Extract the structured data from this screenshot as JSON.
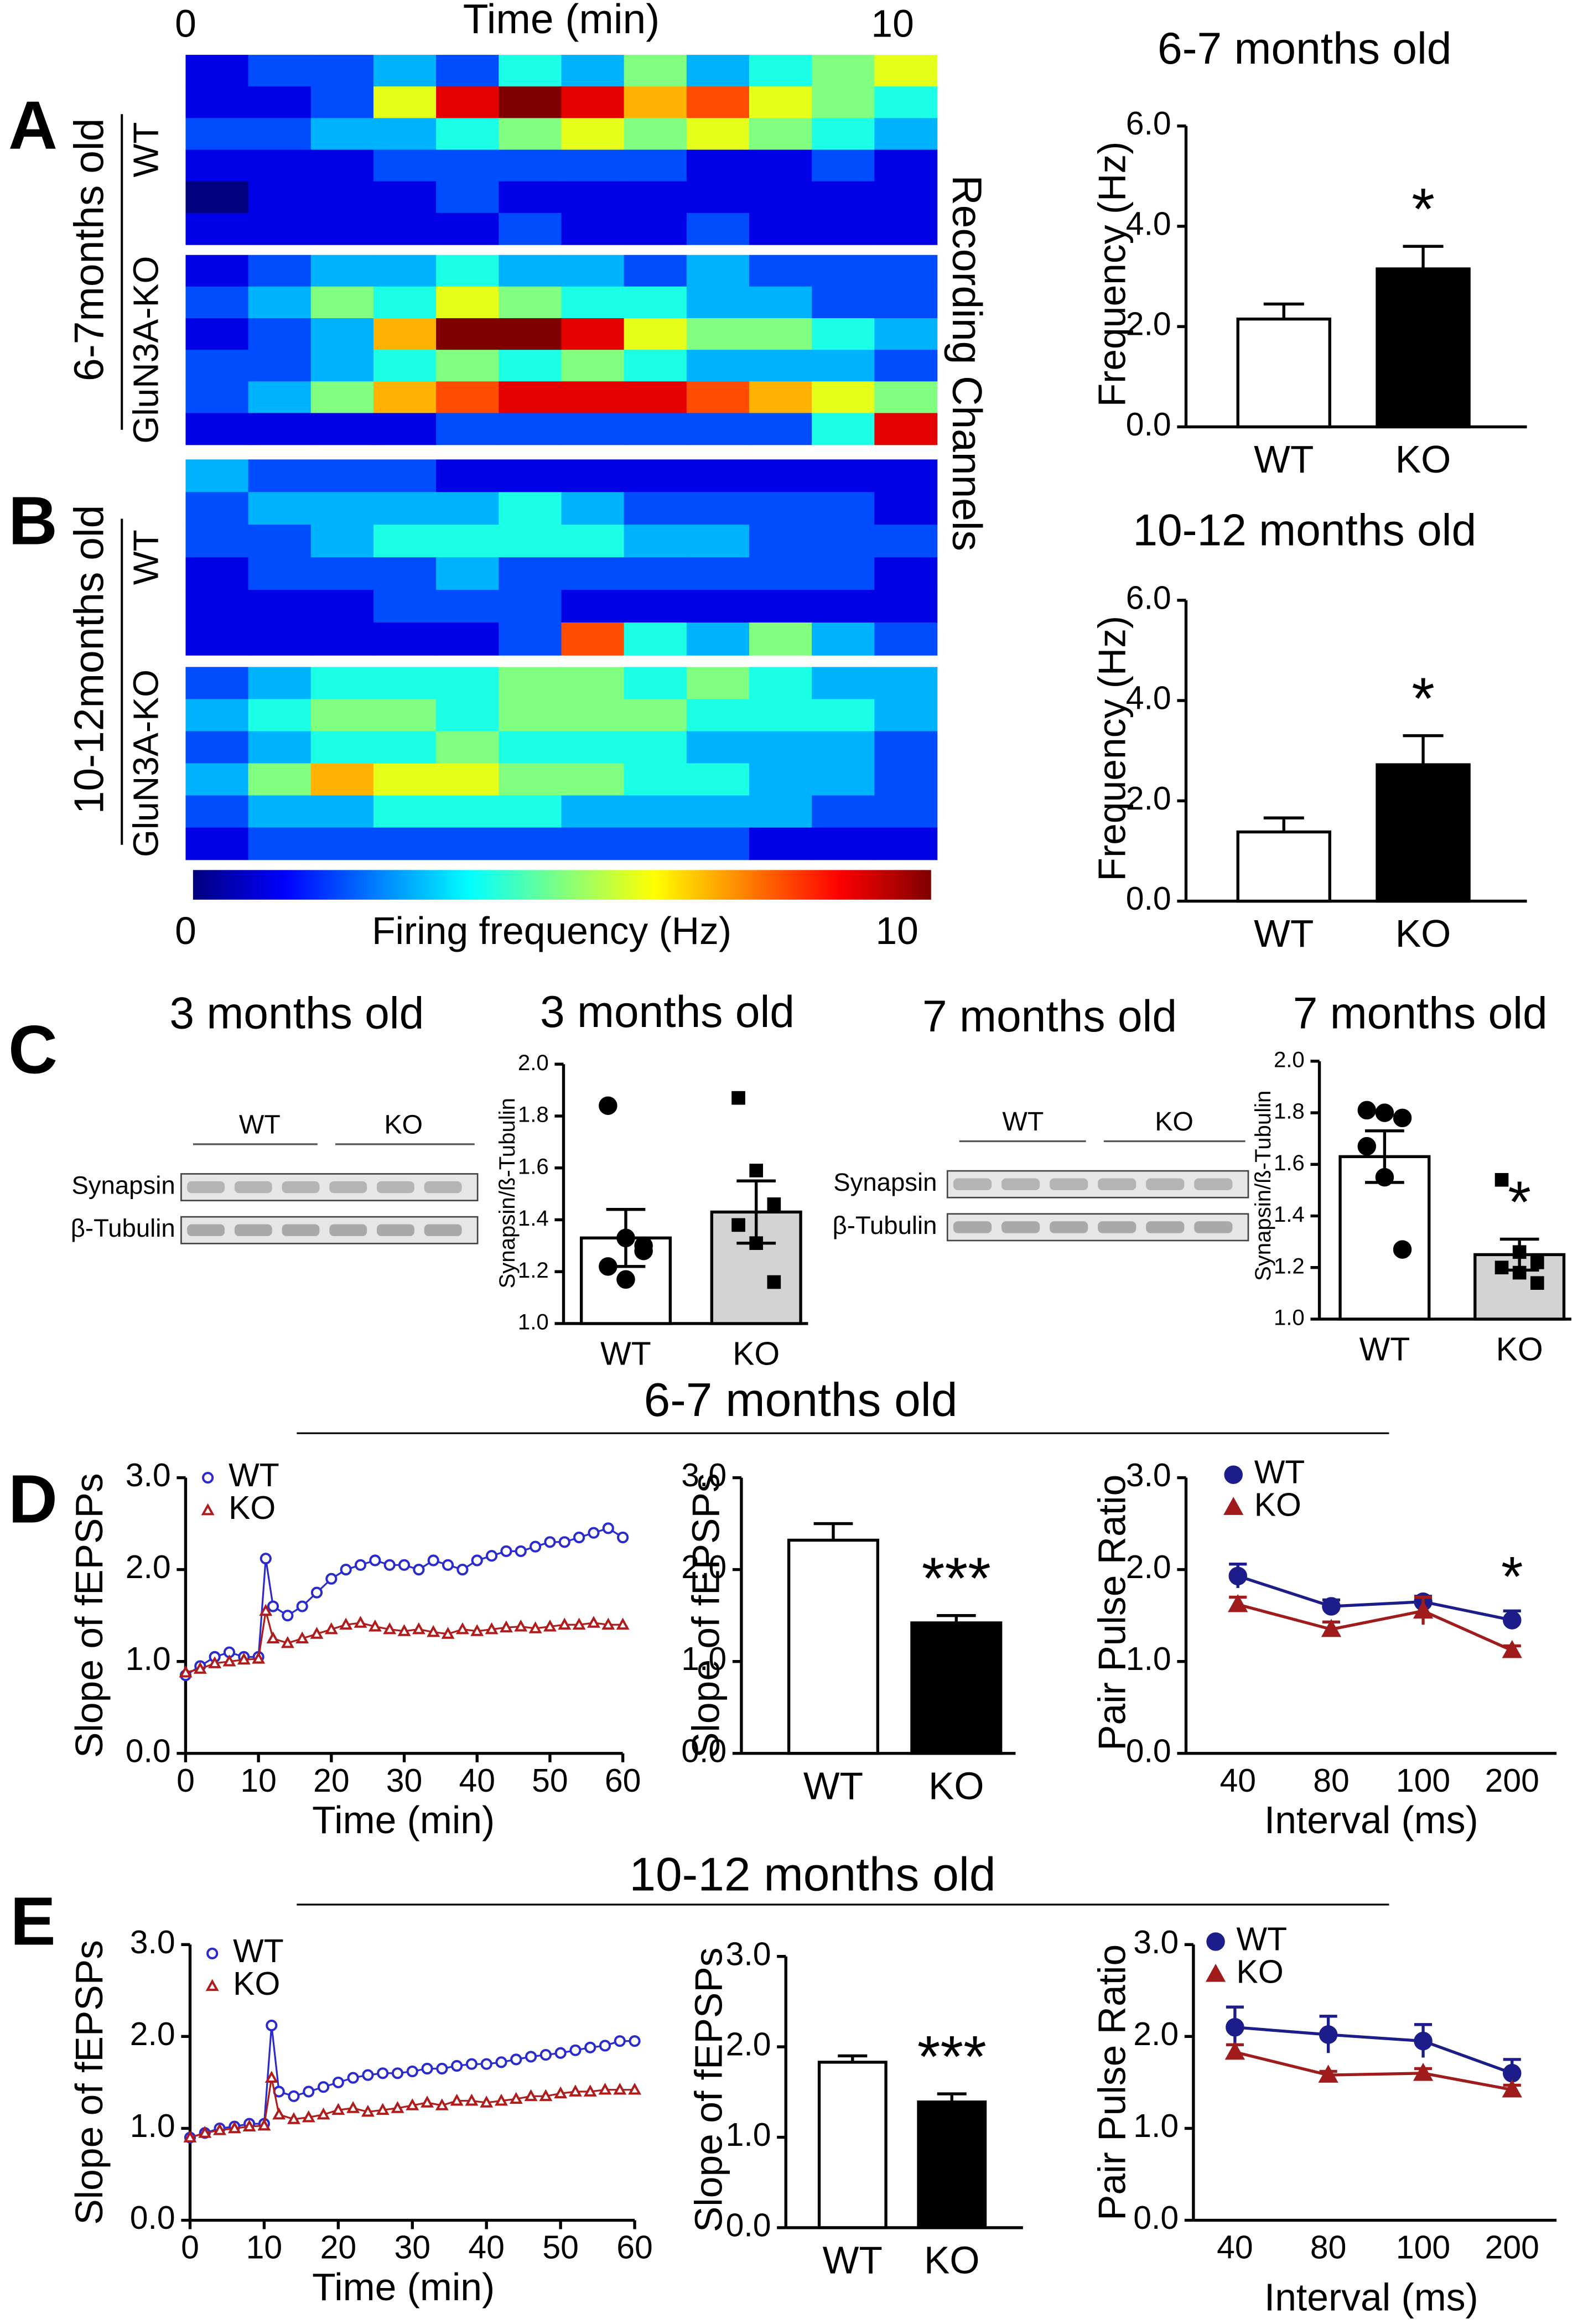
{
  "chart_data": [
    {
      "type": "heatmap",
      "panel": "A",
      "title": "Time (min)",
      "xlim": [
        0,
        10
      ],
      "xticks": [
        0,
        10
      ],
      "ylabel": "6-7months old",
      "side_label": "Recording Channels",
      "groups": [
        {
          "name": "WT",
          "values": [
            [
              1,
              2,
              2,
              3,
              2,
              4,
              3,
              5,
              3,
              4,
              5,
              6
            ],
            [
              1,
              1,
              2,
              6,
              9,
              10,
              9,
              7,
              8,
              6,
              5,
              4
            ],
            [
              2,
              2,
              3,
              3,
              4,
              5,
              6,
              5,
              6,
              5,
              4,
              3
            ],
            [
              1,
              1,
              1,
              2,
              2,
              2,
              2,
              2,
              1,
              1,
              2,
              1
            ],
            [
              0,
              1,
              1,
              1,
              2,
              1,
              1,
              1,
              1,
              1,
              1,
              1
            ],
            [
              1,
              1,
              1,
              1,
              1,
              2,
              1,
              1,
              2,
              1,
              1,
              1
            ]
          ]
        },
        {
          "name": "GluN3A-KO",
          "values": [
            [
              1,
              2,
              3,
              3,
              4,
              3,
              3,
              2,
              3,
              2,
              2,
              2
            ],
            [
              2,
              3,
              5,
              4,
              6,
              5,
              4,
              4,
              3,
              3,
              2,
              2
            ],
            [
              1,
              2,
              3,
              7,
              10,
              10,
              9,
              6,
              5,
              5,
              4,
              3
            ],
            [
              2,
              2,
              3,
              4,
              5,
              4,
              5,
              4,
              3,
              3,
              3,
              2
            ],
            [
              2,
              3,
              5,
              7,
              8,
              9,
              9,
              9,
              8,
              7,
              6,
              5
            ],
            [
              1,
              1,
              1,
              1,
              2,
              2,
              2,
              2,
              2,
              2,
              4,
              9
            ]
          ]
        }
      ]
    },
    {
      "type": "heatmap",
      "panel": "B",
      "ylabel": "10-12months old",
      "groups": [
        {
          "name": "WT",
          "values": [
            [
              3,
              2,
              2,
              2,
              1,
              1,
              1,
              1,
              1,
              1,
              1,
              1
            ],
            [
              2,
              3,
              3,
              3,
              3,
              4,
              3,
              2,
              2,
              2,
              2,
              1
            ],
            [
              2,
              2,
              3,
              4,
              4,
              4,
              4,
              3,
              3,
              2,
              2,
              2
            ],
            [
              1,
              2,
              2,
              2,
              3,
              2,
              2,
              2,
              2,
              2,
              2,
              1
            ],
            [
              1,
              1,
              1,
              2,
              2,
              2,
              1,
              1,
              1,
              1,
              1,
              1
            ],
            [
              1,
              1,
              1,
              1,
              1,
              2,
              8,
              4,
              3,
              5,
              3,
              2
            ]
          ]
        },
        {
          "name": "GluN3A-KO",
          "values": [
            [
              2,
              3,
              4,
              4,
              4,
              5,
              5,
              4,
              5,
              4,
              3,
              3
            ],
            [
              3,
              4,
              5,
              5,
              4,
              5,
              5,
              5,
              4,
              4,
              4,
              3
            ],
            [
              2,
              3,
              4,
              4,
              5,
              4,
              4,
              4,
              3,
              3,
              3,
              2
            ],
            [
              3,
              5,
              7,
              6,
              6,
              5,
              5,
              4,
              4,
              3,
              3,
              2
            ],
            [
              2,
              3,
              3,
              4,
              4,
              4,
              3,
              3,
              3,
              3,
              2,
              2
            ],
            [
              1,
              2,
              2,
              2,
              2,
              2,
              2,
              2,
              2,
              1,
              1,
              1
            ]
          ]
        }
      ],
      "colorbar": {
        "label": "Firing frequency (Hz)",
        "lim": [
          0,
          10
        ],
        "ticks": [
          0,
          10
        ]
      }
    },
    {
      "type": "bar",
      "title": "6-7 months old",
      "ylabel": "Frequency (Hz)",
      "categories": [
        "WT",
        "KO"
      ],
      "values": [
        2.15,
        3.15
      ],
      "errors": [
        0.3,
        0.45
      ],
      "colors": [
        "#ffffff",
        "#000000"
      ],
      "ylim": [
        0,
        6
      ],
      "yticks": [
        {
          "value": 0,
          "label": "0.0"
        },
        {
          "value": 2,
          "label": "2.0"
        },
        {
          "value": 4,
          "label": "4.0"
        },
        {
          "value": 6,
          "label": "6.0"
        }
      ],
      "annotation": "*"
    },
    {
      "type": "bar",
      "title": "10-12 months old",
      "ylabel": "Frequency (Hz)",
      "categories": [
        "WT",
        "KO"
      ],
      "values": [
        1.38,
        2.72
      ],
      "errors": [
        0.28,
        0.58
      ],
      "colors": [
        "#ffffff",
        "#000000"
      ],
      "ylim": [
        0,
        6
      ],
      "yticks": [
        {
          "value": 0,
          "label": "0.0"
        },
        {
          "value": 2,
          "label": "2.0"
        },
        {
          "value": 4,
          "label": "4.0"
        },
        {
          "value": 6,
          "label": "6.0"
        }
      ],
      "annotation": "*"
    },
    {
      "type": "bar",
      "title": "3 months old",
      "ylabel": "Synapsin/ß-Tubulin",
      "categories": [
        "WT",
        "KO"
      ],
      "values": [
        1.33,
        1.43
      ],
      "errors": [
        0.11,
        0.12
      ],
      "colors": [
        "#ffffff",
        "#d3d3d3"
      ],
      "markers": [
        "circle",
        "square"
      ],
      "points": [
        [
          1.84,
          1.33,
          1.28,
          1.22,
          1.17,
          1.3
        ],
        [
          1.87,
          1.59,
          1.46,
          1.38,
          1.31,
          1.16
        ]
      ],
      "ylim": [
        1.0,
        2.0
      ],
      "yticks": [
        {
          "value": 1.0,
          "label": "1.0"
        },
        {
          "value": 1.2,
          "label": "1.2"
        },
        {
          "value": 1.4,
          "label": "1.4"
        },
        {
          "value": 1.6,
          "label": "1.6"
        },
        {
          "value": 1.8,
          "label": "1.8"
        },
        {
          "value": 2.0,
          "label": "2.0"
        }
      ]
    },
    {
      "type": "bar",
      "title": "7 months old",
      "ylabel": "Synapsin/ß-Tubulin",
      "categories": [
        "WT",
        "KO"
      ],
      "values": [
        1.63,
        1.25
      ],
      "errors": [
        0.1,
        0.06
      ],
      "colors": [
        "#ffffff",
        "#d3d3d3"
      ],
      "markers": [
        "circle",
        "square"
      ],
      "points": [
        [
          1.81,
          1.8,
          1.78,
          1.67,
          1.55,
          1.27
        ],
        [
          1.54,
          1.26,
          1.22,
          1.2,
          1.18,
          1.14
        ]
      ],
      "ylim": [
        1.0,
        2.0
      ],
      "yticks": [
        {
          "value": 1.0,
          "label": "1.0"
        },
        {
          "value": 1.2,
          "label": "1.2"
        },
        {
          "value": 1.4,
          "label": "1.4"
        },
        {
          "value": 1.6,
          "label": "1.6"
        },
        {
          "value": 1.8,
          "label": "1.8"
        },
        {
          "value": 2.0,
          "label": "2.0"
        }
      ],
      "annotation": "*"
    },
    {
      "type": "line",
      "panel": "D",
      "xlabel": "Time (min)",
      "ylabel": "Slope of fEPSPs",
      "xlim": [
        0,
        60
      ],
      "xticks": [
        0,
        10,
        20,
        30,
        40,
        50,
        60
      ],
      "ylim": [
        0,
        3
      ],
      "yticks": [
        {
          "value": 0,
          "label": "0.0"
        },
        {
          "value": 1,
          "label": "1.0"
        },
        {
          "value": 2,
          "label": "2.0"
        },
        {
          "value": 3,
          "label": "3.0"
        }
      ],
      "x": [
        0,
        2,
        4,
        6,
        8,
        10,
        11,
        12,
        14,
        16,
        18,
        20,
        22,
        24,
        26,
        28,
        30,
        32,
        34,
        36,
        38,
        40,
        42,
        44,
        46,
        48,
        50,
        52,
        54,
        56,
        58,
        60
      ],
      "series": [
        {
          "name": "WT",
          "color": "#2a2acf",
          "marker": "circle-open",
          "values": [
            0.85,
            0.95,
            1.05,
            1.1,
            1.05,
            1.05,
            2.12,
            1.6,
            1.5,
            1.6,
            1.75,
            1.9,
            2.0,
            2.05,
            2.1,
            2.05,
            2.05,
            2.0,
            2.1,
            2.05,
            2.0,
            2.1,
            2.15,
            2.2,
            2.2,
            2.25,
            2.3,
            2.3,
            2.35,
            2.4,
            2.45,
            2.35
          ]
        },
        {
          "name": "KO",
          "color": "#b01c1c",
          "marker": "triangle-open",
          "values": [
            0.88,
            0.92,
            0.98,
            1.0,
            1.02,
            1.03,
            1.55,
            1.25,
            1.2,
            1.25,
            1.3,
            1.35,
            1.4,
            1.42,
            1.38,
            1.35,
            1.33,
            1.35,
            1.32,
            1.3,
            1.35,
            1.33,
            1.35,
            1.37,
            1.38,
            1.36,
            1.38,
            1.4,
            1.4,
            1.42,
            1.4,
            1.4
          ]
        }
      ]
    },
    {
      "type": "bar",
      "ylabel": "Slope of fEPSPs",
      "categories": [
        "WT",
        "KO"
      ],
      "values": [
        2.32,
        1.42
      ],
      "errors": [
        0.18,
        0.08
      ],
      "colors": [
        "#ffffff",
        "#000000"
      ],
      "ylim": [
        0,
        3
      ],
      "yticks": [
        {
          "value": 0,
          "label": "0.0"
        },
        {
          "value": 1,
          "label": "1.0"
        },
        {
          "value": 2,
          "label": "2.0"
        },
        {
          "value": 3,
          "label": "3.0"
        }
      ],
      "annotation": "***"
    },
    {
      "type": "line",
      "xlabel": "Interval (ms)",
      "ylabel": "Pair Pulse Ratio",
      "categories": [
        40,
        80,
        100,
        200
      ],
      "ylim": [
        0,
        3
      ],
      "yticks": [
        {
          "value": 0,
          "label": "0.0"
        },
        {
          "value": 1,
          "label": "1.0"
        },
        {
          "value": 2,
          "label": "2.0"
        },
        {
          "value": 3,
          "label": "3.0"
        }
      ],
      "series": [
        {
          "name": "WT",
          "color": "#1c1c8a",
          "marker": "circle",
          "values": [
            1.93,
            1.6,
            1.65,
            1.45
          ],
          "errors": [
            0.13,
            0.07,
            0.06,
            0.1
          ]
        },
        {
          "name": "KO",
          "color": "#a01c1c",
          "marker": "triangle",
          "values": [
            1.62,
            1.35,
            1.55,
            1.12
          ],
          "errors": [
            0.08,
            0.08,
            0.15,
            0.05
          ]
        }
      ],
      "annotation": "*"
    },
    {
      "type": "line",
      "panel": "E",
      "xlabel": "Time (min)",
      "ylabel": "Slope of fEPSPs",
      "xlim": [
        0,
        60
      ],
      "xticks": [
        0,
        10,
        20,
        30,
        40,
        50,
        60
      ],
      "ylim": [
        0,
        3
      ],
      "yticks": [
        {
          "value": 0,
          "label": "0.0"
        },
        {
          "value": 1,
          "label": "1.0"
        },
        {
          "value": 2,
          "label": "2.0"
        },
        {
          "value": 3,
          "label": "3.0"
        }
      ],
      "x": [
        0,
        2,
        4,
        6,
        8,
        10,
        11,
        12,
        14,
        16,
        18,
        20,
        22,
        24,
        26,
        28,
        30,
        32,
        34,
        36,
        38,
        40,
        42,
        44,
        46,
        48,
        50,
        52,
        54,
        56,
        58,
        60
      ],
      "series": [
        {
          "name": "WT",
          "color": "#2a2acf",
          "marker": "circle-open",
          "values": [
            0.9,
            0.95,
            1.0,
            1.02,
            1.05,
            1.05,
            2.12,
            1.4,
            1.35,
            1.4,
            1.45,
            1.5,
            1.55,
            1.58,
            1.6,
            1.6,
            1.62,
            1.65,
            1.65,
            1.68,
            1.7,
            1.7,
            1.72,
            1.75,
            1.78,
            1.8,
            1.82,
            1.85,
            1.88,
            1.9,
            1.95,
            1.95
          ]
        },
        {
          "name": "KO",
          "color": "#b01c1c",
          "marker": "triangle-open",
          "values": [
            0.9,
            0.95,
            0.98,
            1.0,
            1.02,
            1.03,
            1.55,
            1.15,
            1.1,
            1.12,
            1.15,
            1.2,
            1.22,
            1.18,
            1.2,
            1.22,
            1.25,
            1.28,
            1.25,
            1.3,
            1.3,
            1.28,
            1.3,
            1.32,
            1.35,
            1.35,
            1.38,
            1.4,
            1.4,
            1.42,
            1.42,
            1.42
          ]
        }
      ]
    },
    {
      "type": "bar",
      "ylabel": "Slope of fEPSPs",
      "categories": [
        "WT",
        "KO"
      ],
      "values": [
        1.83,
        1.39
      ],
      "errors": [
        0.07,
        0.09
      ],
      "colors": [
        "#ffffff",
        "#000000"
      ],
      "ylim": [
        0,
        3
      ],
      "yticks": [
        {
          "value": 0,
          "label": "0.0"
        },
        {
          "value": 1,
          "label": "1.0"
        },
        {
          "value": 2,
          "label": "2.0"
        },
        {
          "value": 3,
          "label": "3.0"
        }
      ],
      "annotation": "***"
    },
    {
      "type": "line",
      "xlabel": "Interval (ms)",
      "ylabel": "Pair Pulse Ratio",
      "categories": [
        40,
        80,
        100,
        200
      ],
      "ylim": [
        0,
        3
      ],
      "yticks": [
        {
          "value": 0,
          "label": "0.0"
        },
        {
          "value": 1,
          "label": "1.0"
        },
        {
          "value": 2,
          "label": "2.0"
        },
        {
          "value": 3,
          "label": "3.0"
        }
      ],
      "series": [
        {
          "name": "WT",
          "color": "#1c1c8a",
          "marker": "circle",
          "values": [
            2.1,
            2.02,
            1.95,
            1.6
          ],
          "errors": [
            0.22,
            0.2,
            0.18,
            0.15
          ]
        },
        {
          "name": "KO",
          "color": "#a01c1c",
          "marker": "triangle",
          "values": [
            1.83,
            1.58,
            1.6,
            1.42
          ],
          "errors": [
            0.08,
            0.04,
            0.05,
            0.05
          ]
        }
      ]
    }
  ],
  "blots": {
    "panel": "C",
    "items": [
      {
        "title": "3 months old",
        "groups": [
          "WT",
          "KO"
        ],
        "rows": [
          "Synapsin",
          "β-Tubulin"
        ]
      },
      {
        "title": "7 months old",
        "groups": [
          "WT",
          "KO"
        ],
        "rows": [
          "Synapsin",
          "β-Tubulin"
        ]
      }
    ]
  },
  "sections": [
    "6-7 months old",
    "10-12 months old"
  ]
}
